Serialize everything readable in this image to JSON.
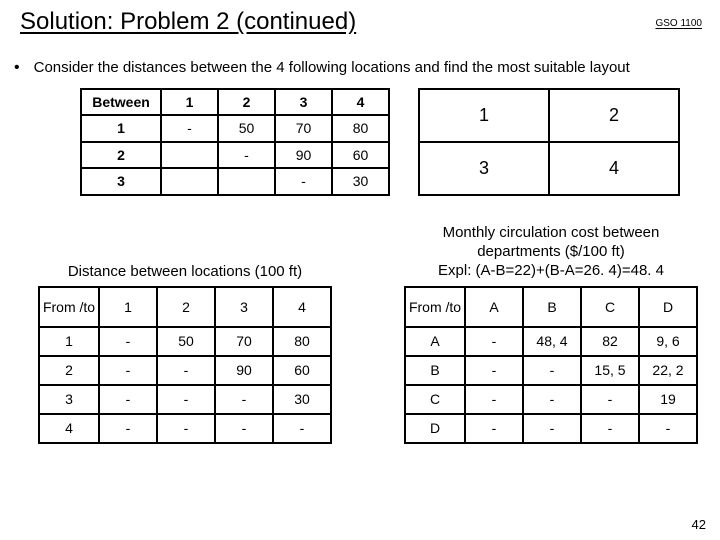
{
  "title": "Solution: Problem 2 (continued)",
  "header_code": "GSO 1100",
  "bullet": "Consider the distances between the 4 following locations and find the most suitable layout",
  "between_table": {
    "corner": "Between",
    "cols": [
      "1",
      "2",
      "3",
      "4"
    ],
    "rows": [
      {
        "h": "1",
        "c": [
          "-",
          "50",
          "70",
          "80"
        ]
      },
      {
        "h": "2",
        "c": [
          "",
          "-",
          "90",
          "60"
        ]
      },
      {
        "h": "3",
        "c": [
          "",
          "",
          "-",
          "30"
        ]
      }
    ]
  },
  "layout_grid": {
    "cells": [
      [
        "1",
        "2"
      ],
      [
        "3",
        "4"
      ]
    ]
  },
  "dist_caption": "Distance between locations (100 ft)",
  "dist_table": {
    "corner": "From /to",
    "cols": [
      "1",
      "2",
      "3",
      "4"
    ],
    "rows": [
      {
        "h": "1",
        "c": [
          "-",
          "50",
          "70",
          "80"
        ]
      },
      {
        "h": "2",
        "c": [
          "-",
          "-",
          "90",
          "60"
        ]
      },
      {
        "h": "3",
        "c": [
          "-",
          "-",
          "-",
          "30"
        ]
      },
      {
        "h": "4",
        "c": [
          "-",
          "-",
          "-",
          "-"
        ]
      }
    ]
  },
  "cost_caption_l1": "Monthly circulation cost between",
  "cost_caption_l2": "departments ($/100 ft)",
  "cost_caption_l3": "Expl: (A-B=22)+(B-A=26. 4)=48. 4",
  "cost_table": {
    "corner": "From /to",
    "cols": [
      "A",
      "B",
      "C",
      "D"
    ],
    "rows": [
      {
        "h": "A",
        "c": [
          "-",
          "48, 4",
          "82",
          "9, 6"
        ]
      },
      {
        "h": "B",
        "c": [
          "-",
          "-",
          "15, 5",
          "22, 2"
        ]
      },
      {
        "h": "C",
        "c": [
          "-",
          "-",
          "-",
          "19"
        ]
      },
      {
        "h": "D",
        "c": [
          "-",
          "-",
          "-",
          "-"
        ]
      }
    ]
  },
  "page_number": "42"
}
